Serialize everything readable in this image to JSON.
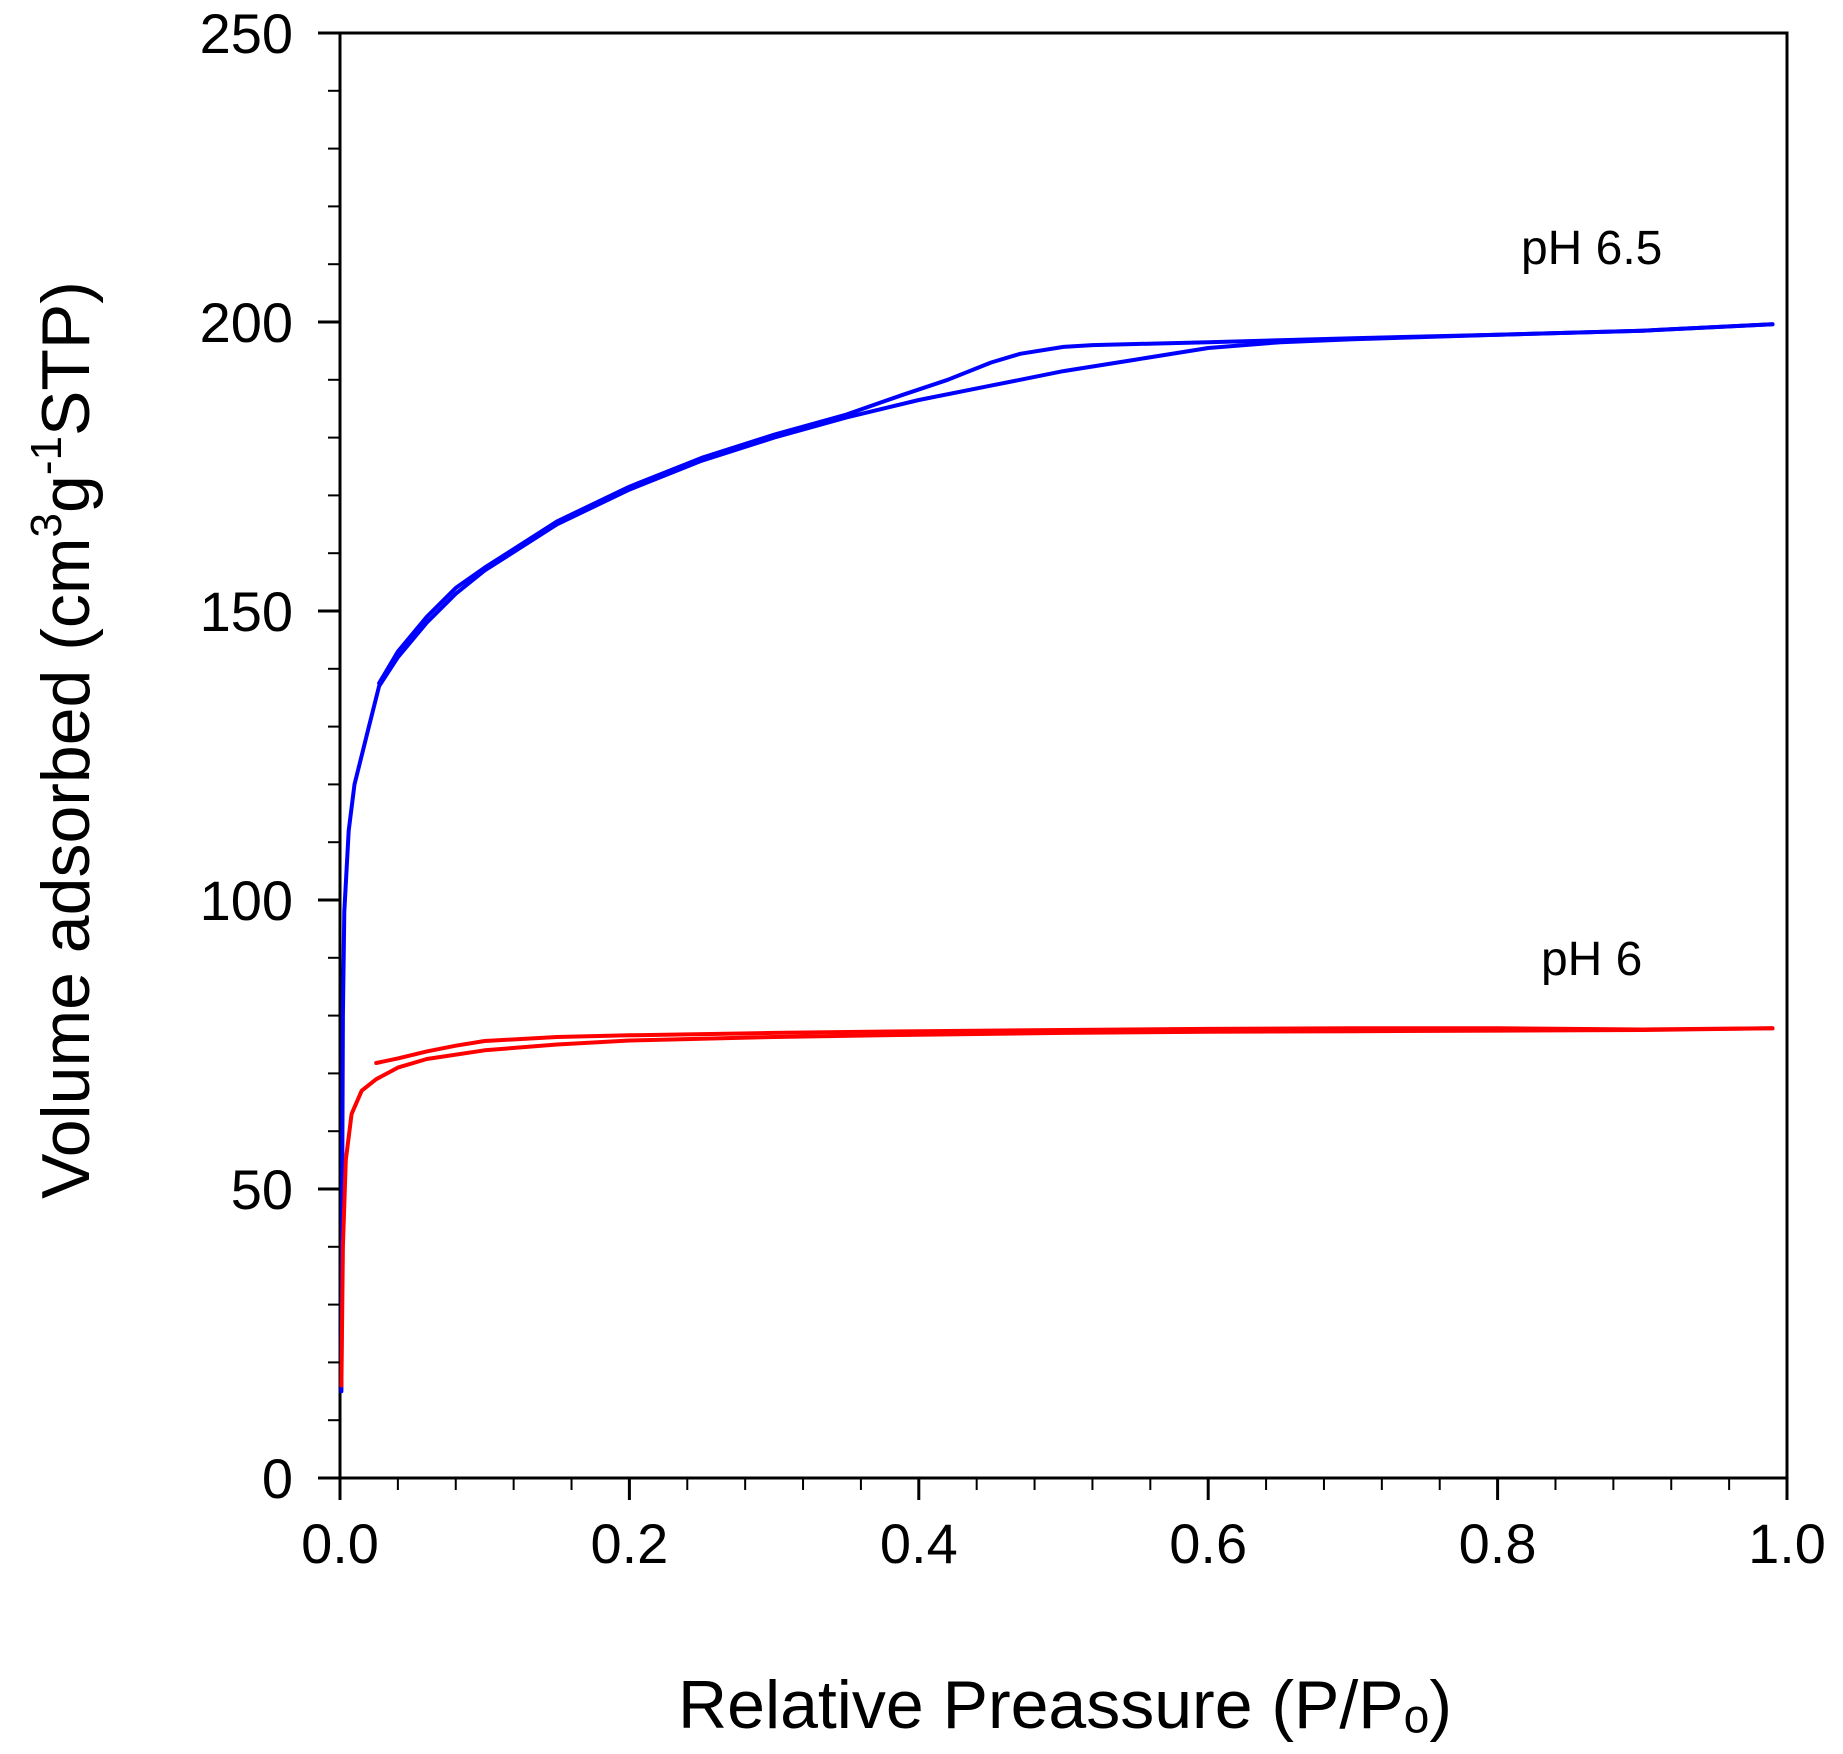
{
  "chart_data": {
    "type": "line",
    "title": "",
    "xlabel": "Relative Preassure (P/Pₒ)",
    "ylabel_main": "Volume adsorbed  (cm",
    "ylabel_sup1": "3",
    "ylabel_mid": "g",
    "ylabel_sup2": "-1",
    "ylabel_end": "STP)",
    "xlim": [
      0.0,
      1.0
    ],
    "ylim": [
      0,
      250
    ],
    "x_ticks": [
      0.0,
      0.2,
      0.4,
      0.6,
      0.8,
      1.0
    ],
    "x_tick_labels": [
      "0.0",
      "0.2",
      "0.4",
      "0.6",
      "0.8",
      "1.0"
    ],
    "y_ticks": [
      0,
      50,
      100,
      150,
      200,
      250
    ],
    "y_tick_labels": [
      "0",
      "50",
      "100",
      "150",
      "200",
      "250"
    ],
    "x_minor_step": 0.04,
    "y_minor_step": 10,
    "grid": false,
    "legend": "inline labels at right",
    "series": [
      {
        "name": "pH 6.5",
        "color": "#0000ff",
        "adsorption": [
          [
            0.001,
            15
          ],
          [
            0.002,
            80
          ],
          [
            0.003,
            98
          ],
          [
            0.006,
            112
          ],
          [
            0.01,
            120
          ],
          [
            0.02,
            130
          ],
          [
            0.027,
            137
          ],
          [
            0.04,
            142
          ],
          [
            0.06,
            148
          ],
          [
            0.08,
            153
          ],
          [
            0.1,
            157
          ],
          [
            0.15,
            165
          ],
          [
            0.2,
            171
          ],
          [
            0.25,
            176
          ],
          [
            0.3,
            180
          ],
          [
            0.35,
            183.5
          ],
          [
            0.4,
            186.5
          ],
          [
            0.45,
            189
          ],
          [
            0.5,
            191.5
          ],
          [
            0.55,
            193.5
          ],
          [
            0.6,
            195.5
          ],
          [
            0.65,
            196.5
          ],
          [
            0.7,
            197
          ],
          [
            0.8,
            197.8
          ],
          [
            0.9,
            198.5
          ],
          [
            0.99,
            199.6
          ]
        ],
        "desorption": [
          [
            0.99,
            199.6
          ],
          [
            0.9,
            198.5
          ],
          [
            0.8,
            197.8
          ],
          [
            0.7,
            197.2
          ],
          [
            0.6,
            196.5
          ],
          [
            0.55,
            196.2
          ],
          [
            0.52,
            196
          ],
          [
            0.5,
            195.7
          ],
          [
            0.47,
            194.5
          ],
          [
            0.45,
            193
          ],
          [
            0.42,
            190
          ],
          [
            0.39,
            187.5
          ],
          [
            0.35,
            184
          ],
          [
            0.3,
            180.5
          ],
          [
            0.25,
            176.5
          ],
          [
            0.2,
            171.5
          ],
          [
            0.15,
            165.5
          ],
          [
            0.1,
            157.5
          ],
          [
            0.08,
            154
          ],
          [
            0.06,
            149
          ],
          [
            0.04,
            143
          ],
          [
            0.027,
            137.5
          ]
        ],
        "label_position": [
          0.865,
          210
        ]
      },
      {
        "name": "pH 6",
        "color": "#ff0000",
        "adsorption": [
          [
            0.001,
            16
          ],
          [
            0.002,
            40
          ],
          [
            0.004,
            55
          ],
          [
            0.008,
            63
          ],
          [
            0.015,
            67
          ],
          [
            0.025,
            69
          ],
          [
            0.04,
            71
          ],
          [
            0.06,
            72.5
          ],
          [
            0.1,
            74
          ],
          [
            0.15,
            75
          ],
          [
            0.2,
            75.7
          ],
          [
            0.3,
            76.3
          ],
          [
            0.4,
            76.7
          ],
          [
            0.5,
            77
          ],
          [
            0.6,
            77.2
          ],
          [
            0.7,
            77.3
          ],
          [
            0.8,
            77.4
          ],
          [
            0.9,
            77.5
          ],
          [
            0.99,
            77.8
          ]
        ],
        "desorption": [
          [
            0.99,
            77.8
          ],
          [
            0.9,
            77.6
          ],
          [
            0.8,
            77.8
          ],
          [
            0.7,
            77.8
          ],
          [
            0.6,
            77.7
          ],
          [
            0.5,
            77.5
          ],
          [
            0.4,
            77.3
          ],
          [
            0.3,
            77
          ],
          [
            0.2,
            76.6
          ],
          [
            0.15,
            76.3
          ],
          [
            0.1,
            75.6
          ],
          [
            0.08,
            74.8
          ],
          [
            0.06,
            73.8
          ],
          [
            0.04,
            72.6
          ],
          [
            0.025,
            71.8
          ]
        ],
        "label_position": [
          0.865,
          87
        ]
      }
    ]
  }
}
